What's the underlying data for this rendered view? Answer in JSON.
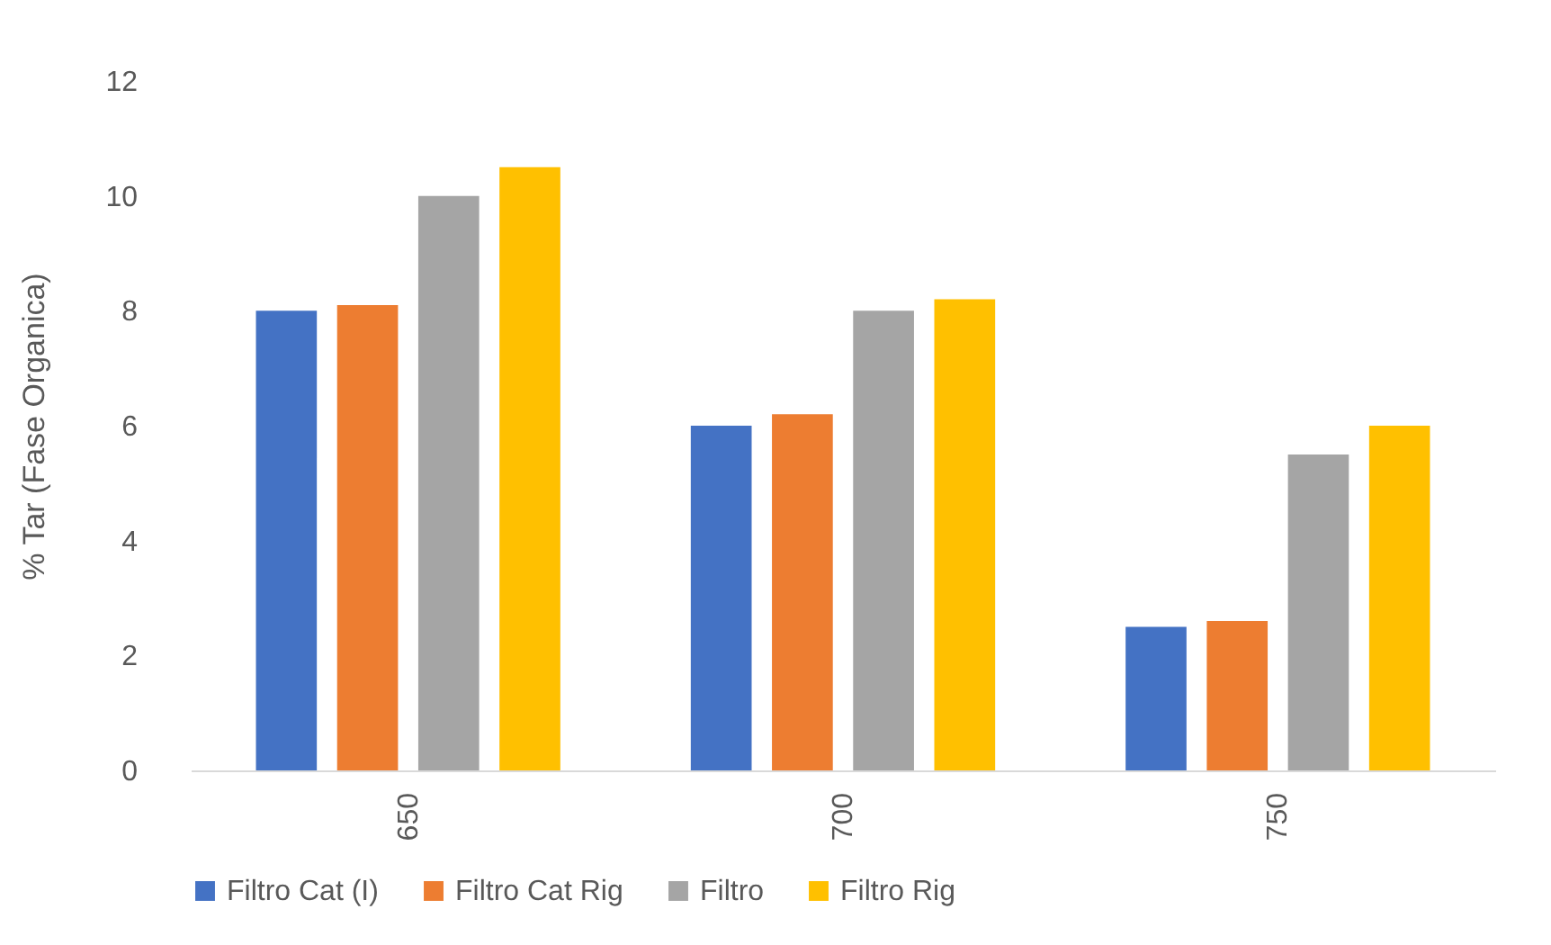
{
  "chart_data": {
    "type": "bar",
    "ylabel": "% Tar (Fase Organica)",
    "categories": [
      "650",
      "700",
      "750"
    ],
    "series": [
      {
        "name": "Filtro Cat (I)",
        "color": "#4472c4",
        "values": [
          8.0,
          6.0,
          2.5
        ]
      },
      {
        "name": "Filtro Cat Rig",
        "color": "#ed7d31",
        "values": [
          8.1,
          6.2,
          2.6
        ]
      },
      {
        "name": "Filtro",
        "color": "#a5a5a5",
        "values": [
          10.0,
          8.0,
          5.5
        ]
      },
      {
        "name": "Filtro Rig",
        "color": "#ffc000",
        "values": [
          10.5,
          8.2,
          6.0
        ]
      }
    ],
    "ylim": [
      0,
      12
    ],
    "yticks": [
      0,
      2,
      4,
      6,
      8,
      10,
      12
    ],
    "grid": false,
    "legend": "bottom"
  }
}
